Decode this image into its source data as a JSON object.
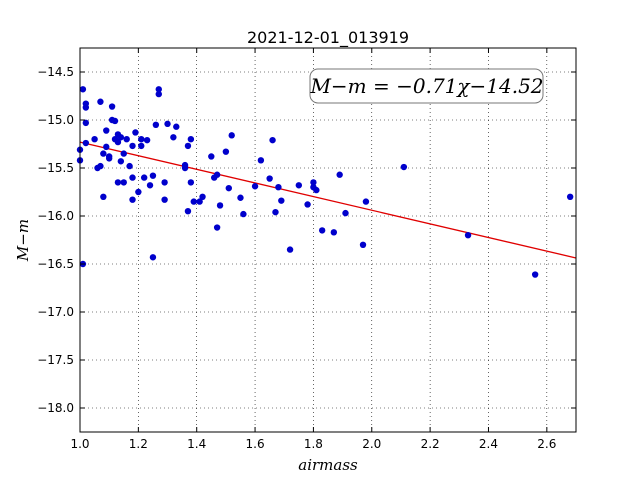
{
  "chart_data": {
    "type": "scatter",
    "title": "2021-12-01_013919",
    "xlabel": "airmass",
    "ylabel": "M−m",
    "xlim": [
      1.0,
      2.7
    ],
    "ylim": [
      -18.25,
      -14.25
    ],
    "y_inverted": true,
    "grid": true,
    "x_ticks": [
      "1.0",
      "1.2",
      "1.4",
      "1.6",
      "1.8",
      "2.0",
      "2.2",
      "2.4",
      "2.6"
    ],
    "x_tick_values": [
      1.0,
      1.2,
      1.4,
      1.6,
      1.8,
      2.0,
      2.2,
      2.4,
      2.6
    ],
    "y_ticks": [
      "−14.5",
      "−15.0",
      "−15.5",
      "−16.0",
      "−16.5",
      "−17.0",
      "−17.5",
      "−18.0"
    ],
    "y_tick_values": [
      -14.5,
      -15.0,
      -15.5,
      -16.0,
      -16.5,
      -17.0,
      -17.5,
      -18.0
    ],
    "annotation": "M−m = −0.71χ−14.52",
    "annotation_position": "top-right",
    "fit": {
      "slope": -0.71,
      "intercept": -14.52,
      "color": "#e00000"
    },
    "marker_color": "#0000cc",
    "points": [
      {
        "x": 1.0,
        "y": -15.31
      },
      {
        "x": 1.0,
        "y": -15.42
      },
      {
        "x": 1.01,
        "y": -16.5
      },
      {
        "x": 1.01,
        "y": -14.68
      },
      {
        "x": 1.02,
        "y": -14.83
      },
      {
        "x": 1.02,
        "y": -14.87
      },
      {
        "x": 1.02,
        "y": -15.03
      },
      {
        "x": 1.02,
        "y": -15.24
      },
      {
        "x": 1.05,
        "y": -15.2
      },
      {
        "x": 1.06,
        "y": -15.5
      },
      {
        "x": 1.07,
        "y": -14.81
      },
      {
        "x": 1.07,
        "y": -15.48
      },
      {
        "x": 1.08,
        "y": -15.8
      },
      {
        "x": 1.08,
        "y": -15.35
      },
      {
        "x": 1.09,
        "y": -15.11
      },
      {
        "x": 1.09,
        "y": -15.28
      },
      {
        "x": 1.1,
        "y": -15.38
      },
      {
        "x": 1.1,
        "y": -15.4
      },
      {
        "x": 1.11,
        "y": -14.86
      },
      {
        "x": 1.11,
        "y": -15.0
      },
      {
        "x": 1.12,
        "y": -15.01
      },
      {
        "x": 1.12,
        "y": -15.2
      },
      {
        "x": 1.13,
        "y": -15.15
      },
      {
        "x": 1.13,
        "y": -15.23
      },
      {
        "x": 1.13,
        "y": -15.65
      },
      {
        "x": 1.14,
        "y": -15.43
      },
      {
        "x": 1.14,
        "y": -15.18
      },
      {
        "x": 1.15,
        "y": -15.65
      },
      {
        "x": 1.15,
        "y": -15.35
      },
      {
        "x": 1.16,
        "y": -15.2
      },
      {
        "x": 1.17,
        "y": -15.48
      },
      {
        "x": 1.18,
        "y": -15.27
      },
      {
        "x": 1.18,
        "y": -15.6
      },
      {
        "x": 1.18,
        "y": -15.83
      },
      {
        "x": 1.19,
        "y": -15.13
      },
      {
        "x": 1.2,
        "y": -15.75
      },
      {
        "x": 1.21,
        "y": -15.2
      },
      {
        "x": 1.21,
        "y": -15.27
      },
      {
        "x": 1.22,
        "y": -15.6
      },
      {
        "x": 1.23,
        "y": -15.21
      },
      {
        "x": 1.24,
        "y": -15.68
      },
      {
        "x": 1.25,
        "y": -16.43
      },
      {
        "x": 1.25,
        "y": -15.58
      },
      {
        "x": 1.26,
        "y": -15.05
      },
      {
        "x": 1.27,
        "y": -14.68
      },
      {
        "x": 1.27,
        "y": -14.73
      },
      {
        "x": 1.29,
        "y": -15.65
      },
      {
        "x": 1.29,
        "y": -15.83
      },
      {
        "x": 1.3,
        "y": -15.04
      },
      {
        "x": 1.32,
        "y": -15.18
      },
      {
        "x": 1.33,
        "y": -15.07
      },
      {
        "x": 1.36,
        "y": -15.47
      },
      {
        "x": 1.36,
        "y": -15.5
      },
      {
        "x": 1.37,
        "y": -15.27
      },
      {
        "x": 1.37,
        "y": -15.95
      },
      {
        "x": 1.38,
        "y": -15.2
      },
      {
        "x": 1.38,
        "y": -15.65
      },
      {
        "x": 1.39,
        "y": -15.85
      },
      {
        "x": 1.41,
        "y": -15.85
      },
      {
        "x": 1.42,
        "y": -15.8
      },
      {
        "x": 1.45,
        "y": -15.38
      },
      {
        "x": 1.46,
        "y": -15.6
      },
      {
        "x": 1.47,
        "y": -15.57
      },
      {
        "x": 1.47,
        "y": -16.12
      },
      {
        "x": 1.48,
        "y": -15.89
      },
      {
        "x": 1.5,
        "y": -15.33
      },
      {
        "x": 1.51,
        "y": -15.71
      },
      {
        "x": 1.52,
        "y": -15.16
      },
      {
        "x": 1.55,
        "y": -15.81
      },
      {
        "x": 1.56,
        "y": -15.98
      },
      {
        "x": 1.6,
        "y": -15.69
      },
      {
        "x": 1.62,
        "y": -15.42
      },
      {
        "x": 1.65,
        "y": -15.61
      },
      {
        "x": 1.66,
        "y": -15.21
      },
      {
        "x": 1.67,
        "y": -15.96
      },
      {
        "x": 1.68,
        "y": -15.7
      },
      {
        "x": 1.69,
        "y": -15.84
      },
      {
        "x": 1.72,
        "y": -16.35
      },
      {
        "x": 1.75,
        "y": -15.68
      },
      {
        "x": 1.78,
        "y": -15.88
      },
      {
        "x": 1.8,
        "y": -15.65
      },
      {
        "x": 1.8,
        "y": -15.7
      },
      {
        "x": 1.81,
        "y": -15.73
      },
      {
        "x": 1.83,
        "y": -16.15
      },
      {
        "x": 1.87,
        "y": -16.17
      },
      {
        "x": 1.89,
        "y": -15.57
      },
      {
        "x": 1.91,
        "y": -15.97
      },
      {
        "x": 1.97,
        "y": -16.3
      },
      {
        "x": 1.98,
        "y": -15.85
      },
      {
        "x": 2.11,
        "y": -15.49
      },
      {
        "x": 2.33,
        "y": -16.2
      },
      {
        "x": 2.56,
        "y": -16.61
      },
      {
        "x": 2.68,
        "y": -15.8
      }
    ]
  }
}
